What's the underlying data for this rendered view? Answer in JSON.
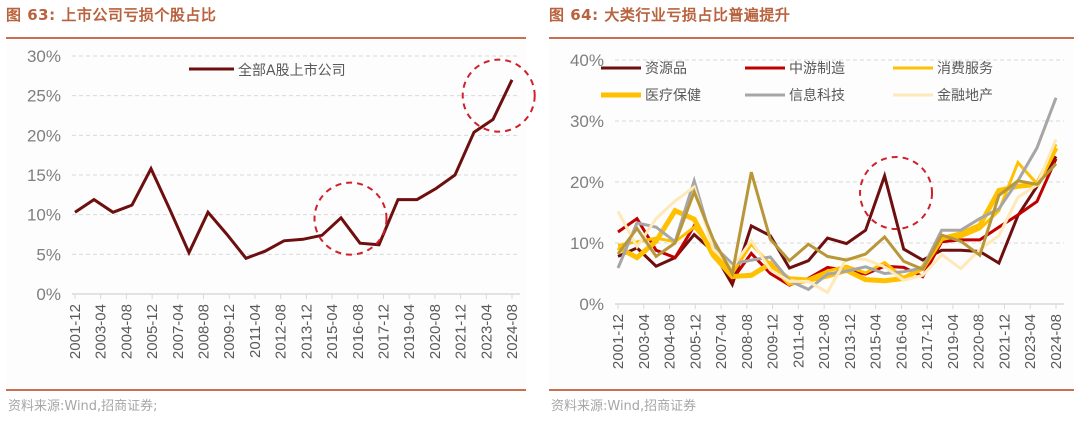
{
  "left": {
    "title": "图 63:  上市公司亏损个股占比",
    "source": "资料来源:Wind,招商证券;",
    "accent_color": "#C8714F"
  },
  "right": {
    "title": "图 64:  大类行业亏损占比普遍提升",
    "source": "资料来源:Wind,招商证券",
    "accent_color": "#C8714F"
  },
  "chart_data": [
    {
      "type": "line",
      "title": "上市公司亏损个股占比",
      "xlabel": "",
      "ylabel": "",
      "ylim": [
        0,
        30
      ],
      "yticks": [
        "0%",
        "5%",
        "10%",
        "15%",
        "20%",
        "25%",
        "30%"
      ],
      "ytick_values": [
        0,
        5,
        10,
        15,
        20,
        25,
        30
      ],
      "grid": true,
      "legend_position": "top-center",
      "x_tick_labels": [
        "2001-12",
        "2003-04",
        "2004-08",
        "2005-12",
        "2007-04",
        "2008-08",
        "2009-12",
        "2011-04",
        "2012-08",
        "2013-12",
        "2015-04",
        "2016-08",
        "2017-12",
        "2019-04",
        "2020-08",
        "2021-12",
        "2023-04",
        "2024-08"
      ],
      "points_count": 24,
      "series": [
        {
          "name": "全部A股上市公司",
          "color": "#6E0F0F",
          "values": [
            10.3,
            11.9,
            10.3,
            11.2,
            15.8,
            10.6,
            5.2,
            10.3,
            7.5,
            4.5,
            5.4,
            6.7,
            6.9,
            7.4,
            9.6,
            6.4,
            6.2,
            11.9,
            11.9,
            13.3,
            15.0,
            20.4,
            22.0,
            27.0
          ]
        }
      ],
      "annotations": [
        {
          "type": "dashed-circle",
          "color": "#D0202A",
          "center_index": 14.5,
          "center_value": 9.5,
          "note": "2016 highlight"
        },
        {
          "type": "dashed-circle",
          "color": "#D0202A",
          "center_index": 22.3,
          "center_value": 25.0,
          "note": "recent highlight"
        }
      ]
    },
    {
      "type": "line",
      "title": "大类行业亏损占比普遍提升",
      "xlabel": "",
      "ylabel": "",
      "ylim": [
        0,
        40
      ],
      "yticks": [
        "0%",
        "10%",
        "20%",
        "30%",
        "40%"
      ],
      "ytick_values": [
        0,
        10,
        20,
        30,
        40
      ],
      "grid": true,
      "legend_position": "top",
      "x_tick_labels": [
        "2001-12",
        "2003-04",
        "2004-08",
        "2005-12",
        "2007-04",
        "2008-08",
        "2009-12",
        "2011-04",
        "2012-08",
        "2013-12",
        "2015-04",
        "2016-08",
        "2017-12",
        "2019-04",
        "2020-08",
        "2021-12",
        "2023-04",
        "2024-08"
      ],
      "points_count": 24,
      "series": [
        {
          "name": "资源品",
          "color": "#6E0F0F",
          "width": 3,
          "values": [
            7.8,
            9.2,
            6.2,
            7.6,
            11.4,
            8.6,
            3.2,
            12.8,
            11.2,
            5.9,
            7.1,
            10.8,
            9.9,
            12.1,
            21.0,
            9.0,
            7.2,
            8.8,
            8.8,
            8.6,
            6.7,
            14.5,
            19.3,
            24.2
          ]
        },
        {
          "name": "中游制造",
          "color": "#C00000",
          "width": 3,
          "values": [
            11.8,
            14.0,
            8.8,
            7.6,
            12.8,
            8.6,
            4.0,
            8.3,
            5.0,
            3.1,
            4.2,
            6.0,
            5.5,
            4.9,
            6.2,
            6.0,
            4.5,
            10.2,
            10.5,
            10.5,
            12.6,
            14.6,
            16.8,
            23.8
          ]
        },
        {
          "name": "消费服务",
          "color": "#FFC000",
          "width": 3,
          "values": [
            9.6,
            10.2,
            10.8,
            10.2,
            12.6,
            9.0,
            5.0,
            9.8,
            6.5,
            4.3,
            4.1,
            5.4,
            6.2,
            5.1,
            6.8,
            4.3,
            6.2,
            11.0,
            11.0,
            12.3,
            15.3,
            23.2,
            19.7,
            26.2
          ]
        },
        {
          "name": "医疗保健",
          "color": "#FFC000",
          "width": 5,
          "values": [
            9.3,
            7.6,
            10.3,
            15.3,
            13.9,
            8.0,
            4.5,
            4.7,
            6.6,
            3.4,
            3.9,
            4.6,
            5.5,
            4.0,
            3.8,
            4.2,
            5.9,
            10.7,
            11.5,
            12.9,
            18.6,
            19.3,
            19.6,
            25.6
          ]
        },
        {
          "name": "信息科技",
          "color": "#A6A6A6",
          "width": 3,
          "values": [
            5.9,
            13.3,
            12.6,
            10.2,
            20.2,
            9.6,
            6.6,
            7.2,
            7.7,
            3.8,
            2.4,
            4.9,
            5.4,
            6.1,
            5.0,
            5.3,
            5.9,
            12.1,
            12.1,
            14.0,
            15.6,
            20.2,
            25.6,
            33.8
          ]
        },
        {
          "name": "金融地产",
          "color": "#FFE9B8",
          "width": 3,
          "values": [
            15.2,
            9.4,
            14.0,
            16.9,
            19.2,
            9.0,
            6.0,
            10.4,
            5.6,
            3.7,
            3.7,
            1.9,
            7.5,
            7.3,
            6.1,
            3.9,
            4.7,
            8.1,
            5.8,
            8.9,
            11.2,
            17.5,
            19.5,
            27.0
          ]
        },
        {
          "name": "",
          "color": "#B8973A",
          "width": 3,
          "values": [
            8.2,
            12.4,
            7.8,
            10.0,
            18.4,
            10.6,
            5.0,
            21.6,
            10.6,
            7.1,
            9.8,
            7.8,
            7.2,
            8.2,
            11.0,
            7.0,
            5.7,
            11.3,
            10.3,
            8.0,
            17.8,
            20.2,
            19.6,
            23.0
          ]
        }
      ],
      "annotations": [
        {
          "type": "dashed-circle",
          "color": "#D0202A",
          "center_index": 14.6,
          "center_value": 18.2,
          "note": "resource peak highlight"
        }
      ]
    }
  ]
}
